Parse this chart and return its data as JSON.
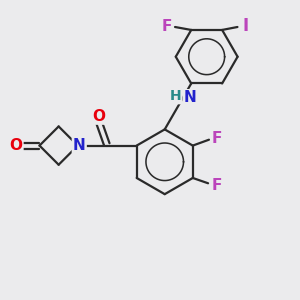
{
  "bg_color": "#ebebed",
  "bond_color": "#2a2a2a",
  "bond_width": 1.6,
  "atom_colors": {
    "O": "#e8000d",
    "N": "#2222cc",
    "F": "#bb44bb",
    "I": "#bb44bb",
    "H": "#2a8a8a"
  },
  "font_size": 11,
  "font_size_H": 10,
  "font_size_I": 12
}
